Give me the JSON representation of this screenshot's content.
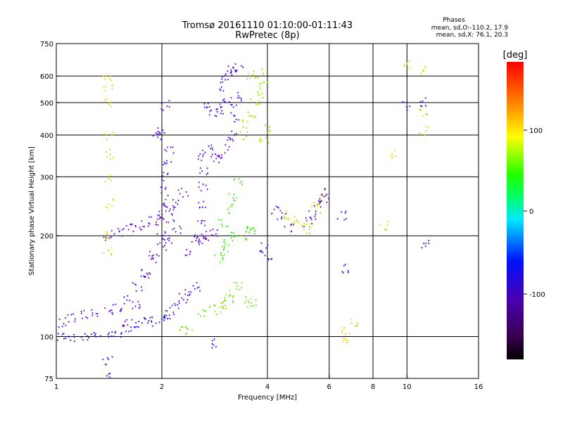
{
  "header": {
    "title_line1": "Tromsø 20161110 01:10:00-01:11:43",
    "title_line2": "RwPretec (8p)",
    "phase_title": "Phases",
    "phase_o": "mean, sd,O:-110.2, 17.9",
    "phase_x": "mean, sd,X:  76.1, 20.3"
  },
  "chart_data": {
    "type": "scatter",
    "xlabel": "Frequency [MHz]",
    "ylabel": "Stationary phase Virtual Height [km]",
    "x_scale": "log2",
    "y_scale": "log",
    "xlim": [
      1,
      16
    ],
    "ylim": [
      75,
      750
    ],
    "x_ticks": [
      "1",
      "2",
      "4",
      "6",
      "8",
      "10",
      "16"
    ],
    "y_ticks": [
      "75",
      "100",
      "200",
      "300",
      "400",
      "500",
      "600",
      "750"
    ],
    "x_grid": [
      2,
      4,
      6,
      8,
      10
    ],
    "y_grid": [
      100,
      200,
      300,
      400,
      500,
      600
    ],
    "grid": true,
    "colorbar": {
      "label": "[deg]",
      "ticks": [
        "100",
        "0",
        "-100"
      ],
      "range": [
        -180,
        180
      ],
      "colormap": "rainbow (black → purple → blue → cyan → green → yellow → orange → red)"
    },
    "series": [
      {
        "trace_id": "o-low",
        "phase_deg": -95,
        "points": [
          [
            1.03,
            100
          ],
          [
            1.1,
            99
          ],
          [
            1.2,
            99
          ],
          [
            1.3,
            100
          ],
          [
            1.4,
            101
          ],
          [
            1.5,
            103
          ],
          [
            1.6,
            106
          ],
          [
            1.7,
            108
          ],
          [
            1.8,
            110
          ],
          [
            1.9,
            111
          ],
          [
            2.0,
            112
          ],
          [
            2.05,
            114
          ]
        ]
      },
      {
        "trace_id": "o-spread-a",
        "phase_deg": -115,
        "points": [
          [
            1.03,
            110
          ],
          [
            1.1,
            113
          ],
          [
            1.2,
            116
          ],
          [
            1.3,
            118
          ],
          [
            1.4,
            119
          ],
          [
            1.5,
            121
          ],
          [
            1.6,
            128
          ],
          [
            1.7,
            140
          ],
          [
            1.8,
            155
          ],
          [
            1.9,
            170
          ],
          [
            2.0,
            185
          ],
          [
            2.1,
            195
          ],
          [
            2.2,
            210
          ]
        ]
      },
      {
        "trace_id": "o-spread-b",
        "phase_deg": -125,
        "points": [
          [
            1.6,
            110
          ],
          [
            1.7,
            125
          ],
          [
            1.8,
            150
          ],
          [
            1.9,
            175
          ],
          [
            2.0,
            200
          ],
          [
            2.1,
            225
          ],
          [
            2.2,
            250
          ],
          [
            2.3,
            270
          ]
        ]
      },
      {
        "trace_id": "o-spread-c",
        "phase_deg": -130,
        "points": [
          [
            1.4,
            200
          ],
          [
            1.5,
            205
          ],
          [
            1.6,
            210
          ],
          [
            1.7,
            212
          ],
          [
            1.8,
            215
          ],
          [
            1.9,
            220
          ],
          [
            2.0,
            230
          ],
          [
            2.1,
            240
          ]
        ]
      },
      {
        "trace_id": "o-column-2",
        "phase_deg": -110,
        "points": [
          [
            2.0,
            230
          ],
          [
            2.02,
            250
          ],
          [
            2.05,
            270
          ],
          [
            2.05,
            300
          ],
          [
            2.08,
            330
          ],
          [
            2.1,
            360
          ],
          [
            1.95,
            400
          ],
          [
            2.0,
            410
          ],
          [
            2.05,
            490
          ]
        ]
      },
      {
        "trace_id": "o-spread-d",
        "phase_deg": -120,
        "points": [
          [
            2.1,
            120
          ],
          [
            2.2,
            125
          ],
          [
            2.3,
            130
          ],
          [
            2.4,
            135
          ],
          [
            2.5,
            140
          ],
          [
            2.4,
            180
          ],
          [
            2.5,
            190
          ],
          [
            2.6,
            195
          ],
          [
            2.7,
            200
          ],
          [
            2.8,
            205
          ]
        ]
      },
      {
        "trace_id": "o-column-2.6",
        "phase_deg": -115,
        "points": [
          [
            2.55,
            200
          ],
          [
            2.6,
            220
          ],
          [
            2.6,
            250
          ],
          [
            2.62,
            280
          ],
          [
            2.65,
            310
          ],
          [
            2.6,
            340
          ],
          [
            2.7,
            360
          ],
          [
            2.8,
            350
          ],
          [
            2.9,
            340
          ],
          [
            3.0,
            350
          ]
        ]
      },
      {
        "trace_id": "o-f2",
        "phase_deg": -110,
        "points": [
          [
            2.7,
            480
          ],
          [
            2.8,
            470
          ],
          [
            2.9,
            470
          ],
          [
            3.0,
            500
          ],
          [
            3.0,
            560
          ],
          [
            3.05,
            600
          ],
          [
            3.1,
            620
          ],
          [
            3.2,
            630
          ],
          [
            3.3,
            640
          ],
          [
            3.2,
            500
          ],
          [
            3.3,
            520
          ],
          [
            3.25,
            450
          ],
          [
            3.2,
            400
          ],
          [
            3.1,
            380
          ]
        ]
      },
      {
        "trace_id": "x-low",
        "phase_deg": 80,
        "points": [
          [
            2.3,
            104
          ],
          [
            2.4,
            104
          ],
          [
            2.6,
            118
          ],
          [
            2.8,
            120
          ],
          [
            2.9,
            122
          ],
          [
            3.0,
            125
          ],
          [
            3.1,
            130
          ],
          [
            3.2,
            135
          ],
          [
            3.3,
            140
          ],
          [
            3.5,
            130
          ],
          [
            3.6,
            125
          ]
        ]
      },
      {
        "trace_id": "x-spread",
        "phase_deg": 60,
        "points": [
          [
            2.9,
            170
          ],
          [
            3.0,
            180
          ],
          [
            3.1,
            190
          ],
          [
            3.2,
            200
          ],
          [
            3.0,
            220
          ],
          [
            3.1,
            240
          ],
          [
            3.2,
            260
          ],
          [
            3.3,
            290
          ],
          [
            3.4,
            200
          ],
          [
            3.5,
            205
          ],
          [
            3.6,
            210
          ]
        ]
      },
      {
        "trace_id": "x-f2",
        "phase_deg": 90,
        "points": [
          [
            3.4,
            400
          ],
          [
            3.5,
            430
          ],
          [
            3.6,
            460
          ],
          [
            3.7,
            500
          ],
          [
            3.8,
            530
          ],
          [
            3.9,
            560
          ],
          [
            3.6,
            600
          ],
          [
            3.8,
            610
          ],
          [
            4.0,
            420
          ],
          [
            3.9,
            380
          ]
        ]
      },
      {
        "trace_id": "x-mid",
        "phase_deg": 100,
        "points": [
          [
            4.5,
            230
          ],
          [
            4.7,
            225
          ],
          [
            5.0,
            215
          ],
          [
            5.2,
            210
          ],
          [
            5.4,
            218
          ],
          [
            5.5,
            240
          ],
          [
            5.6,
            255
          ]
        ]
      },
      {
        "trace_id": "o-mid",
        "phase_deg": -120,
        "points": [
          [
            4.2,
            240
          ],
          [
            4.4,
            230
          ],
          [
            4.6,
            210
          ],
          [
            5.2,
            220
          ],
          [
            5.4,
            230
          ],
          [
            5.6,
            250
          ],
          [
            5.8,
            260
          ],
          [
            5.9,
            270
          ]
        ]
      },
      {
        "trace_id": "x-1.4",
        "phase_deg": 110,
        "points": [
          [
            1.4,
            600
          ],
          [
            1.4,
            550
          ],
          [
            1.4,
            500
          ],
          [
            1.41,
            400
          ],
          [
            1.41,
            350
          ],
          [
            1.4,
            300
          ],
          [
            1.42,
            250
          ],
          [
            1.41,
            200
          ],
          [
            1.4,
            180
          ]
        ]
      },
      {
        "trace_id": "scattered-high",
        "phase_deg": 115,
        "points": [
          [
            6.6,
            98
          ],
          [
            6.7,
            105
          ],
          [
            7.0,
            110
          ],
          [
            8.6,
            215
          ],
          [
            9.2,
            350
          ],
          [
            9.9,
            650
          ],
          [
            11.2,
            410
          ],
          [
            11.2,
            470
          ],
          [
            11.2,
            620
          ]
        ]
      },
      {
        "trace_id": "scattered-low",
        "phase_deg": -100,
        "points": [
          [
            3.9,
            185
          ],
          [
            4.0,
            175
          ],
          [
            6.6,
            160
          ],
          [
            6.5,
            230
          ],
          [
            11.2,
            190
          ],
          [
            11.2,
            500
          ],
          [
            9.9,
            490
          ],
          [
            2.8,
            95
          ],
          [
            1.4,
            85
          ],
          [
            1.4,
            75
          ]
        ]
      }
    ]
  }
}
